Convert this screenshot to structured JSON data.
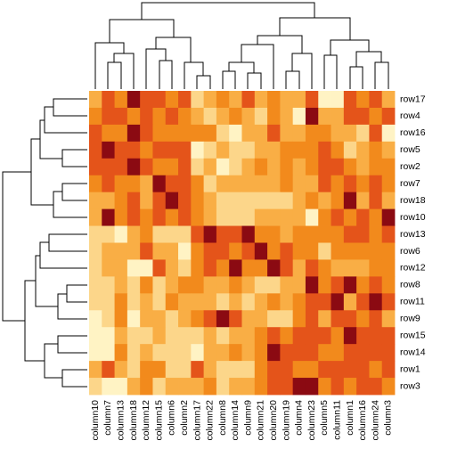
{
  "chart_data": {
    "type": "heatmap",
    "columns": [
      "column10",
      "column7",
      "column13",
      "column18",
      "column12",
      "column15",
      "column6",
      "column2",
      "column17",
      "column22",
      "column8",
      "column14",
      "column9",
      "column21",
      "column20",
      "column19",
      "column4",
      "column23",
      "column5",
      "column11",
      "column1",
      "column16",
      "column24",
      "column3"
    ],
    "rows": [
      "row17",
      "row4",
      "row16",
      "row5",
      "row2",
      "row7",
      "row18",
      "row10",
      "row13",
      "row6",
      "row12",
      "row8",
      "row11",
      "row9",
      "row15",
      "row14",
      "row1",
      "row3"
    ],
    "colors": [
      "#fff3c4",
      "#fcd68a",
      "#f9ae45",
      "#f28a1c",
      "#e4541a",
      "#8b0a12"
    ],
    "values": [
      [
        3,
        5,
        4,
        6,
        5,
        5,
        4,
        5,
        2,
        3,
        4,
        3,
        5,
        3,
        4,
        3,
        3,
        5,
        1,
        1,
        5,
        4,
        5,
        3
      ],
      [
        4,
        5,
        5,
        4,
        5,
        4,
        5,
        4,
        3,
        2,
        3,
        4,
        3,
        2,
        4,
        3,
        1,
        6,
        3,
        3,
        5,
        5,
        4,
        5
      ],
      [
        5,
        4,
        4,
        6,
        5,
        4,
        4,
        4,
        4,
        4,
        2,
        1,
        3,
        3,
        5,
        3,
        3,
        4,
        4,
        3,
        3,
        2,
        5,
        1
      ],
      [
        5,
        6,
        5,
        5,
        4,
        5,
        5,
        5,
        1,
        2,
        3,
        2,
        2,
        3,
        3,
        4,
        4,
        4,
        5,
        4,
        2,
        3,
        4,
        3
      ],
      [
        5,
        5,
        5,
        6,
        5,
        4,
        4,
        5,
        2,
        3,
        1,
        2,
        3,
        4,
        3,
        4,
        3,
        4,
        5,
        5,
        4,
        3,
        4,
        4
      ],
      [
        4,
        5,
        4,
        4,
        3,
        6,
        5,
        5,
        4,
        2,
        3,
        3,
        3,
        3,
        3,
        4,
        3,
        3,
        5,
        4,
        5,
        4,
        5,
        4
      ],
      [
        3,
        3,
        4,
        5,
        3,
        5,
        6,
        5,
        4,
        3,
        2,
        2,
        2,
        2,
        2,
        2,
        3,
        4,
        3,
        4,
        6,
        3,
        5,
        3
      ],
      [
        3,
        6,
        4,
        5,
        4,
        5,
        4,
        5,
        4,
        3,
        2,
        2,
        2,
        3,
        3,
        3,
        3,
        1,
        4,
        5,
        4,
        5,
        4,
        6
      ],
      [
        2,
        2,
        1,
        3,
        4,
        2,
        2,
        2,
        5,
        6,
        5,
        5,
        6,
        4,
        4,
        3,
        4,
        4,
        4,
        4,
        5,
        5,
        4,
        5
      ],
      [
        2,
        3,
        3,
        3,
        5,
        3,
        3,
        1,
        4,
        5,
        5,
        4,
        5,
        6,
        4,
        5,
        4,
        4,
        2,
        4,
        4,
        4,
        4,
        4
      ],
      [
        2,
        3,
        3,
        1,
        1,
        5,
        3,
        2,
        4,
        5,
        4,
        6,
        4,
        4,
        6,
        5,
        3,
        5,
        4,
        3,
        3,
        3,
        4,
        4
      ],
      [
        2,
        2,
        3,
        2,
        4,
        2,
        3,
        4,
        4,
        3,
        3,
        4,
        3,
        2,
        2,
        3,
        3,
        6,
        4,
        5,
        6,
        4,
        5,
        4
      ],
      [
        2,
        2,
        4,
        2,
        3,
        2,
        4,
        3,
        3,
        3,
        2,
        3,
        2,
        3,
        4,
        3,
        4,
        5,
        5,
        6,
        3,
        5,
        6,
        5
      ],
      [
        1,
        2,
        4,
        1,
        3,
        3,
        2,
        3,
        4,
        5,
        6,
        5,
        3,
        3,
        2,
        2,
        4,
        5,
        3,
        5,
        5,
        4,
        5,
        3
      ],
      [
        1,
        1,
        3,
        2,
        2,
        3,
        2,
        2,
        2,
        3,
        2,
        3,
        3,
        4,
        5,
        4,
        5,
        5,
        5,
        4,
        6,
        5,
        5,
        5
      ],
      [
        1,
        1,
        4,
        2,
        3,
        2,
        2,
        2,
        1,
        3,
        3,
        4,
        3,
        4,
        6,
        5,
        5,
        5,
        4,
        4,
        5,
        5,
        5,
        5
      ],
      [
        3,
        5,
        3,
        2,
        4,
        4,
        2,
        2,
        5,
        3,
        2,
        2,
        2,
        4,
        5,
        5,
        4,
        4,
        5,
        5,
        5,
        5,
        4,
        5
      ],
      [
        2,
        1,
        1,
        3,
        4,
        2,
        3,
        3,
        3,
        4,
        2,
        3,
        3,
        4,
        5,
        5,
        6,
        6,
        4,
        5,
        4,
        5,
        5,
        4
      ]
    ]
  }
}
